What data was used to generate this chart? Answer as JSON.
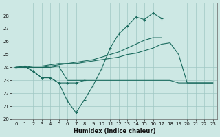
{
  "x": [
    0,
    1,
    2,
    3,
    4,
    5,
    6,
    7,
    8,
    9,
    10,
    11,
    12,
    13,
    14,
    15,
    16,
    17,
    18,
    19,
    20,
    21,
    22,
    23
  ],
  "line1_marked": [
    24.0,
    24.1,
    23.7,
    23.2,
    23.2,
    22.8,
    21.4,
    20.5,
    21.5,
    22.6,
    23.9,
    25.5,
    26.6,
    27.2,
    27.9,
    27.7,
    28.2,
    27.8,
    null,
    null,
    null,
    null,
    null,
    null
  ],
  "line2_marked": [
    24.0,
    24.1,
    23.7,
    23.2,
    23.2,
    22.8,
    22.8,
    22.8,
    23.0,
    null,
    null,
    null,
    null,
    null,
    null,
    null,
    null,
    null,
    null,
    null,
    null,
    null,
    null,
    null
  ],
  "line3_plain": [
    24.0,
    24.0,
    24.0,
    24.0,
    24.1,
    24.2,
    24.3,
    24.4,
    24.5,
    24.6,
    24.8,
    25.0,
    25.2,
    25.5,
    25.8,
    26.1,
    26.3,
    26.3,
    null,
    null,
    null,
    null,
    null,
    null
  ],
  "line4_plain": [
    24.0,
    24.0,
    24.0,
    24.0,
    24.0,
    24.1,
    23.0,
    23.0,
    23.0,
    23.0,
    23.0,
    23.0,
    23.0,
    23.0,
    23.0,
    23.0,
    23.0,
    23.0,
    23.0,
    22.8,
    22.8,
    22.8,
    22.8,
    22.8
  ],
  "line5_plain": [
    24.0,
    24.0,
    24.1,
    24.1,
    24.2,
    24.3,
    24.3,
    24.3,
    24.4,
    24.5,
    24.6,
    24.7,
    24.8,
    25.0,
    25.1,
    25.3,
    25.5,
    25.8,
    25.9,
    25.0,
    22.8,
    22.8,
    22.8,
    22.8
  ],
  "bg_color": "#cde8e4",
  "grid_color": "#a0c8c4",
  "line_color": "#1a6b5e",
  "xlabel": "Humidex (Indice chaleur)",
  "ylim": [
    20,
    29
  ],
  "xlim": [
    -0.5,
    23.5
  ],
  "yticks": [
    20,
    21,
    22,
    23,
    24,
    25,
    26,
    27,
    28
  ],
  "xticks": [
    0,
    1,
    2,
    3,
    4,
    5,
    6,
    7,
    8,
    9,
    10,
    11,
    12,
    13,
    14,
    15,
    16,
    17,
    18,
    19,
    20,
    21,
    22,
    23
  ]
}
